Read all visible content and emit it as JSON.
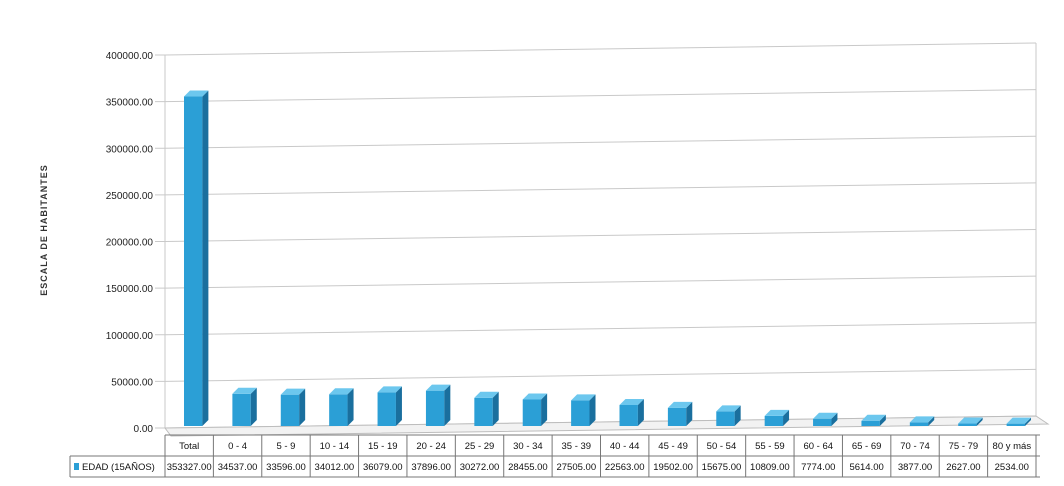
{
  "chart_data": {
    "type": "bar",
    "title": "",
    "ylabel": "ESCALA DE HABITANTES",
    "xlabel": "",
    "ylim": [
      0,
      400000
    ],
    "ytick_step": 50000,
    "ytick_labels": [
      "0.00",
      "50000.00",
      "100000.00",
      "150000.00",
      "200000.00",
      "250000.00",
      "300000.00",
      "350000.00",
      "400000.00"
    ],
    "categories": [
      "Total",
      "0 - 4",
      "5 - 9",
      "10 - 14",
      "15 - 19",
      "20 - 24",
      "25 - 29",
      "30 - 34",
      "35 - 39",
      "40 - 44",
      "45 - 49",
      "50 - 54",
      "55 - 59",
      "60 - 64",
      "65 - 69",
      "70 - 74",
      "75 - 79",
      "80 y más"
    ],
    "series": [
      {
        "name": "EDAD (15AÑOS)",
        "values": [
          353327,
          34537,
          33596,
          34012,
          36079,
          37896,
          30272,
          28455,
          27505,
          22563,
          19502,
          15675,
          10809,
          7774,
          5614,
          3877,
          2627,
          2534
        ],
        "value_labels": [
          "353327.00",
          "34537.00",
          "33596.00",
          "34012.00",
          "36079.00",
          "37896.00",
          "30272.00",
          "28455.00",
          "27505.00",
          "22563.00",
          "19502.00",
          "15675.00",
          "10809.00",
          "7774.00",
          "5614.00",
          "3877.00",
          "2627.00",
          "2534.00"
        ]
      }
    ],
    "grid": true,
    "legend": "data-table",
    "colors": {
      "bar_front": "#2b9fd6",
      "bar_side": "#1a6f9e",
      "bar_top": "#6cc7ee",
      "grid": "#c9c9c9"
    }
  }
}
